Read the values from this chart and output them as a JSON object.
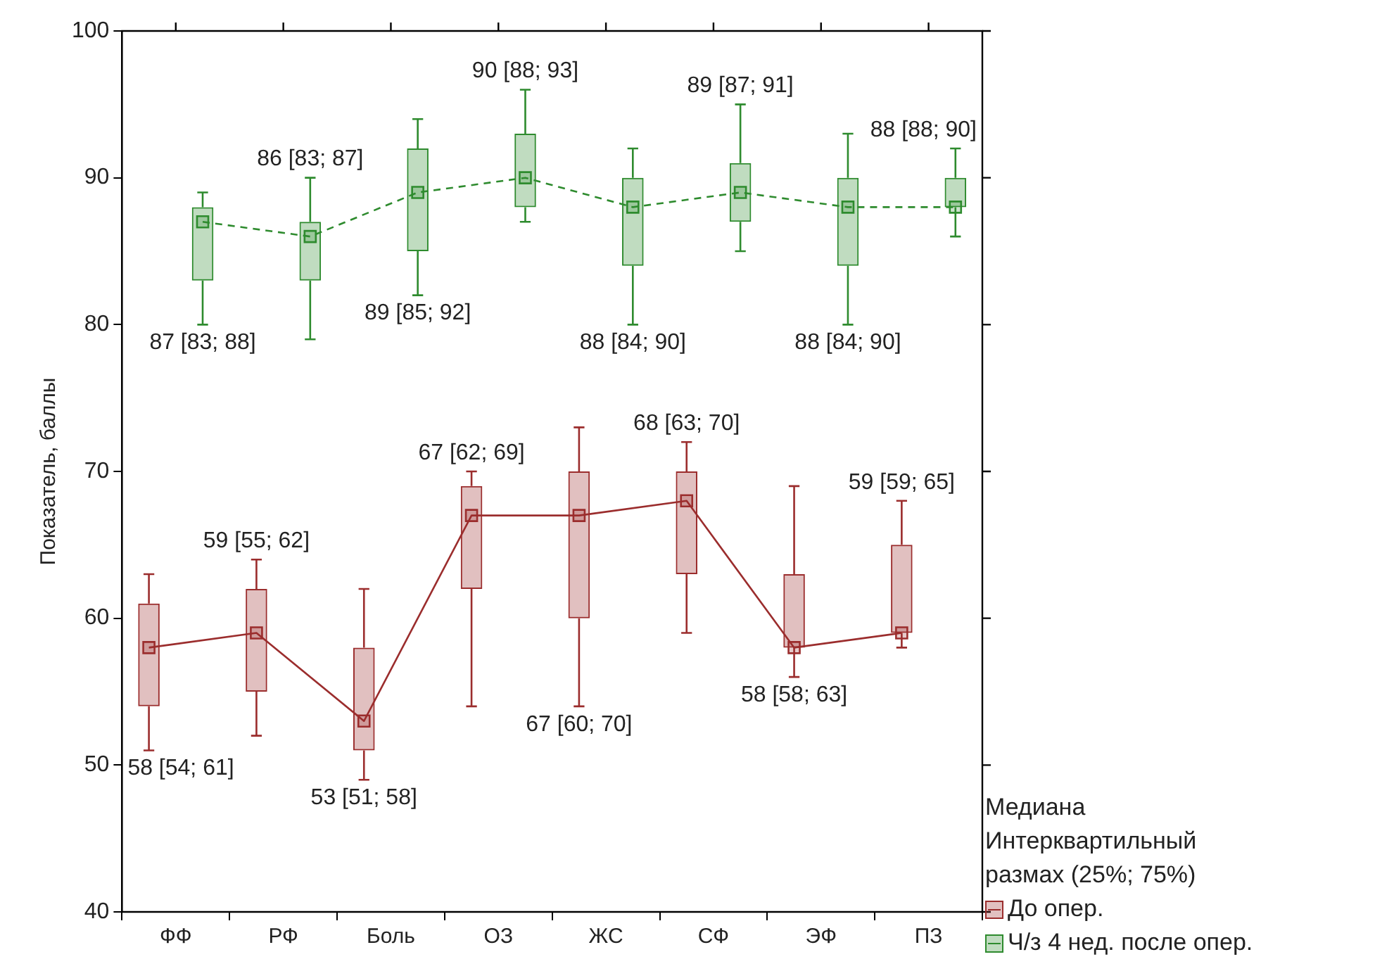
{
  "chart_data": {
    "type": "box",
    "ylabel": "Показатель, баллы",
    "legend_title": "Медиана\nИнтерквартильный размах (25%; 75%)",
    "legend": "bottom right",
    "marker": "square",
    "grid": false,
    "categories": [
      "ФФ",
      "РФ",
      "Боль",
      "ОЗ",
      "ЖС",
      "СФ",
      "ЭФ",
      "ПЗ"
    ],
    "ylim": [
      40,
      100
    ],
    "yticks": [
      40,
      50,
      60,
      70,
      80,
      90,
      100
    ],
    "series": [
      {
        "name": "До опер.",
        "color": "#9b2d2d",
        "boxes": [
          {
            "low": 51,
            "q1": 54,
            "median": 58,
            "q3": 61,
            "high": 63
          },
          {
            "low": 52,
            "q1": 55,
            "median": 59,
            "q3": 62,
            "high": 64
          },
          {
            "low": 49,
            "q1": 51,
            "median": 53,
            "q3": 58,
            "high": 62
          },
          {
            "low": 54,
            "q1": 62,
            "median": 67,
            "q3": 69,
            "high": 70
          },
          {
            "low": 54,
            "q1": 60,
            "median": 67,
            "q3": 70,
            "high": 73
          },
          {
            "low": 59,
            "q1": 63,
            "median": 68,
            "q3": 70,
            "high": 72
          },
          {
            "low": 56,
            "q1": 58,
            "median": 58,
            "q3": 63,
            "high": 69
          },
          {
            "low": 58,
            "q1": 59,
            "median": 59,
            "q3": 65,
            "high": 68
          }
        ]
      },
      {
        "name": "Ч/з 4 нед. после опер.",
        "color": "#2e8b2e",
        "boxes": [
          {
            "low": 80,
            "q1": 83,
            "median": 87,
            "q3": 88,
            "high": 89
          },
          {
            "low": 79,
            "q1": 83,
            "median": 86,
            "q3": 87,
            "high": 90
          },
          {
            "low": 82,
            "q1": 85,
            "median": 89,
            "q3": 92,
            "high": 94
          },
          {
            "low": 87,
            "q1": 88,
            "median": 90,
            "q3": 93,
            "high": 96
          },
          {
            "low": 80,
            "q1": 84,
            "median": 88,
            "q3": 90,
            "high": 92
          },
          {
            "low": 85,
            "q1": 87,
            "median": 89,
            "q3": 91,
            "high": 95
          },
          {
            "low": 80,
            "q1": 84,
            "median": 88,
            "q3": 90,
            "high": 93
          },
          {
            "low": 86,
            "q1": 88,
            "median": 88,
            "q3": 90,
            "high": 92
          }
        ]
      },
      {
        "type": "line",
        "color": "#9b2d2d",
        "line_style": "solid",
        "marker": "none",
        "values": [
          58,
          59,
          53,
          67,
          67,
          68,
          58,
          59
        ]
      },
      {
        "type": "line",
        "color": "#2e8b2e",
        "line_style": "dashed",
        "marker": "none",
        "values": [
          87,
          86,
          89,
          90,
          88,
          89,
          88,
          88
        ]
      }
    ],
    "annotations": [
      "58 [54; 61]",
      "59 [55; 62]",
      "53 [51; 58]",
      "67 [62; 69]",
      "67 [60; 70]",
      "68 [63; 70]",
      "58 [58; 63]",
      "59 [59; 65]",
      "87 [83; 88]",
      "86 [83; 87]",
      "89 [85; 92]",
      "90 [88; 93]",
      "88 [84; 90]",
      "89 [87; 91]",
      "88 [84; 90]",
      "88 [88; 90]"
    ]
  }
}
